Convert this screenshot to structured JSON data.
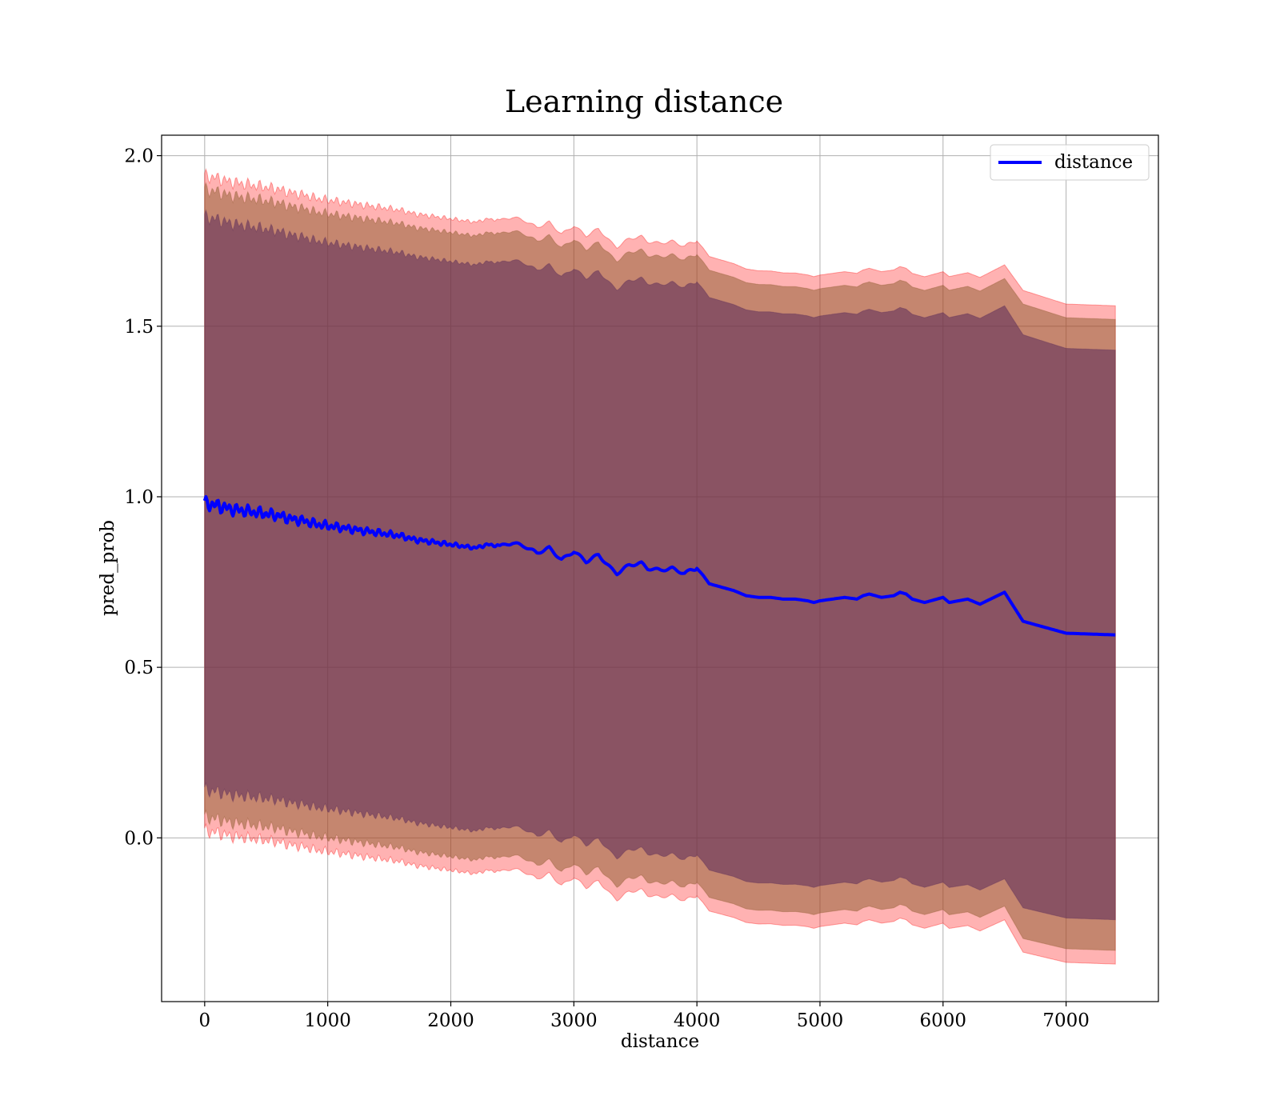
{
  "chart_data": {
    "type": "area",
    "title": "Learning distance",
    "xlabel": "distance",
    "ylabel": "pred_prob",
    "xlim": [
      -350,
      7750
    ],
    "ylim": [
      -0.48,
      2.06
    ],
    "xticks": [
      0,
      1000,
      2000,
      3000,
      4000,
      5000,
      6000,
      7000
    ],
    "xtick_labels": [
      "0",
      "1000",
      "2000",
      "3000",
      "4000",
      "5000",
      "6000",
      "7000"
    ],
    "yticks": [
      0.0,
      0.5,
      1.0,
      1.5,
      2.0
    ],
    "ytick_labels": [
      "0.0",
      "0.5",
      "1.0",
      "1.5",
      "2.0"
    ],
    "grid": true,
    "legend": {
      "placement": "upper right",
      "entries": [
        "distance"
      ]
    },
    "colors": {
      "line": "#0000ff",
      "band_outer": "#ff0000",
      "band_inner": "#8b5a2b",
      "band_core": "#5a2a5a"
    },
    "series": [
      {
        "name": "distance",
        "x": [
          0,
          100,
          200,
          300,
          400,
          500,
          600,
          700,
          800,
          900,
          1000,
          1100,
          1200,
          1300,
          1400,
          1500,
          1600,
          1700,
          1800,
          1900,
          2000,
          2100,
          2200,
          2300,
          2400,
          2500,
          2600,
          2700,
          2800,
          2900,
          3000,
          3100,
          3200,
          3300,
          3350,
          3450,
          3550,
          3600,
          3700,
          3800,
          3900,
          3950,
          4000,
          4050,
          4100,
          4200,
          4300,
          4400,
          4500,
          4600,
          4700,
          4800,
          4900,
          4950,
          5000,
          5100,
          5200,
          5300,
          5350,
          5400,
          5500,
          5600,
          5650,
          5700,
          5750,
          5850,
          6000,
          6050,
          6200,
          6300,
          6500,
          6650,
          7000,
          7400
        ],
        "y": [
          0.98,
          0.975,
          0.965,
          0.96,
          0.955,
          0.95,
          0.945,
          0.935,
          0.93,
          0.92,
          0.915,
          0.91,
          0.905,
          0.9,
          0.895,
          0.89,
          0.885,
          0.875,
          0.87,
          0.865,
          0.86,
          0.855,
          0.85,
          0.86,
          0.855,
          0.865,
          0.855,
          0.835,
          0.85,
          0.815,
          0.84,
          0.81,
          0.83,
          0.79,
          0.775,
          0.8,
          0.805,
          0.79,
          0.785,
          0.79,
          0.775,
          0.785,
          0.79,
          0.77,
          0.745,
          0.735,
          0.725,
          0.71,
          0.705,
          0.705,
          0.7,
          0.7,
          0.695,
          0.69,
          0.695,
          0.7,
          0.705,
          0.7,
          0.71,
          0.715,
          0.705,
          0.71,
          0.72,
          0.715,
          0.7,
          0.69,
          0.705,
          0.69,
          0.7,
          0.685,
          0.72,
          0.635,
          0.6,
          0.595
        ]
      }
    ],
    "bands": [
      {
        "label_visible": false,
        "center_offset_sd": 3,
        "color": "#ff0000",
        "opacity": 0.3
      },
      {
        "label_visible": false,
        "center_offset_sd": 2.8,
        "color": "#8b5a2b",
        "opacity": 0.5
      },
      {
        "label_visible": false,
        "center_offset_sd": 2.55,
        "color": "#5a2a5a",
        "opacity": 0.55
      }
    ],
    "band_halfwidth": {
      "x": [
        0,
        1000,
        2000,
        3000,
        4000,
        5000,
        6000,
        6500,
        6650,
        7000,
        7400
      ],
      "outer": [
        0.96,
        0.955,
        0.955,
        0.955,
        0.96,
        0.955,
        0.955,
        0.96,
        0.97,
        0.965,
        0.965
      ],
      "inner": [
        0.92,
        0.915,
        0.915,
        0.915,
        0.92,
        0.915,
        0.915,
        0.92,
        0.93,
        0.925,
        0.925
      ],
      "core": [
        0.84,
        0.83,
        0.83,
        0.83,
        0.84,
        0.835,
        0.835,
        0.84,
        0.84,
        0.835,
        0.835
      ]
    }
  }
}
